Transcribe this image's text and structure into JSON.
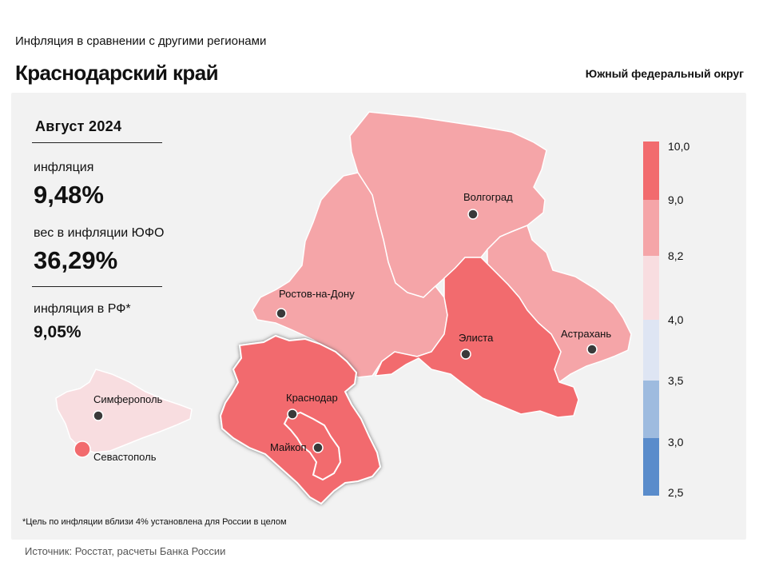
{
  "header": {
    "supertitle": "Инфляция в сравнении с другими регионами",
    "title": "Краснодарский край",
    "district": "Южный федеральный округ"
  },
  "stats": {
    "period": "Август 2024",
    "inflation_label": "инфляция",
    "inflation_value": "9,48%",
    "weight_label": "вес в инфляции ЮФО",
    "weight_value": "36,29%",
    "russia_label": "инфляция в РФ*",
    "russia_value": "9,05%"
  },
  "footnote": "*Цель по инфляции вблизи 4% установлена для России в целом",
  "source": "Источник: Росстат, расчеты Банка России",
  "legend": {
    "ticks": [
      "10,0",
      "9,0",
      "8,2",
      "4,0",
      "3,5",
      "3,0",
      "2,5"
    ],
    "bins": [
      {
        "from": 9.0,
        "to": 10.0,
        "color": "#f26b6e"
      },
      {
        "from": 8.2,
        "to": 9.0,
        "color": "#f5a5a8"
      },
      {
        "from": 4.0,
        "to": 8.2,
        "color": "#f8dde0"
      },
      {
        "from": 3.5,
        "to": 4.0,
        "color": "#dee5f3"
      },
      {
        "from": 3.0,
        "to": 3.5,
        "color": "#9ebbdf"
      },
      {
        "from": 2.5,
        "to": 3.0,
        "color": "#5a8ccb"
      }
    ]
  },
  "cities": {
    "volgograd": "Волгоград",
    "rostov": "Ростов-на-Дону",
    "elista": "Элиста",
    "astrakhan": "Астрахань",
    "simferopol": "Симферополь",
    "krasnodar": "Краснодар",
    "maykop": "Майкоп",
    "sevastopol": "Севастополь"
  },
  "regions": {
    "volgograd_region": {
      "bin": "8,2–9,0",
      "color": "#f5a5a8"
    },
    "rostov_region": {
      "bin": "8,2–9,0",
      "color": "#f5a5a8"
    },
    "astrakhan_region": {
      "bin": "8,2–9,0",
      "color": "#f5a5a8"
    },
    "kalmykia": {
      "bin": "9,0–10,0",
      "color": "#f26b6e"
    },
    "krasnodar_krai": {
      "bin": "9,0–10,0",
      "color": "#f26b6e"
    },
    "adygea": {
      "bin": "9,0–10,0",
      "color": "#f26b6e"
    },
    "crimea": {
      "bin": "4,0–8,2",
      "color": "#f8dde0"
    },
    "sevastopol": {
      "bin": "9,0–10,0",
      "color": "#f26b6e"
    }
  }
}
